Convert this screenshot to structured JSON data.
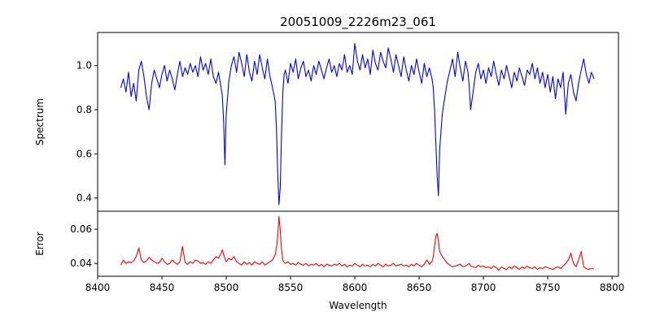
{
  "chart_data": [
    {
      "type": "line",
      "title": "20051009_2226m23_061",
      "xlabel": "",
      "ylabel": "Spectrum",
      "xlim": [
        8400,
        8805
      ],
      "ylim": [
        0.34,
        1.15
      ],
      "yticks": [
        0.4,
        0.6,
        0.8,
        1.0
      ],
      "ytick_labels": [
        "0.4",
        "0.6",
        "0.8",
        "1.0"
      ],
      "grid": false,
      "series": [
        {
          "color": "#0000ff",
          "x": [
            8418,
            8420,
            8422,
            8424,
            8426,
            8428,
            8430,
            8432,
            8434,
            8436,
            8438,
            8440,
            8442,
            8444,
            8446,
            8448,
            8450,
            8452,
            8454,
            8456,
            8458,
            8460,
            8462,
            8464,
            8466,
            8468,
            8470,
            8472,
            8474,
            8476,
            8478,
            8480,
            8482,
            8484,
            8486,
            8488,
            8490,
            8492,
            8494,
            8496,
            8497,
            8498,
            8499,
            8500,
            8502,
            8504,
            8506,
            8508,
            8510,
            8512,
            8514,
            8516,
            8518,
            8520,
            8522,
            8524,
            8526,
            8528,
            8530,
            8532,
            8534,
            8536,
            8538,
            8539,
            8540,
            8541,
            8542,
            8543,
            8544,
            8545,
            8546,
            8548,
            8550,
            8552,
            8554,
            8556,
            8558,
            8560,
            8562,
            8564,
            8566,
            8568,
            8570,
            8572,
            8574,
            8576,
            8578,
            8580,
            8582,
            8584,
            8586,
            8588,
            8590,
            8592,
            8594,
            8596,
            8598,
            8600,
            8602,
            8604,
            8606,
            8608,
            8610,
            8612,
            8614,
            8616,
            8618,
            8620,
            8622,
            8624,
            8626,
            8628,
            8630,
            8632,
            8634,
            8636,
            8638,
            8640,
            8642,
            8644,
            8646,
            8648,
            8650,
            8652,
            8654,
            8656,
            8658,
            8660,
            8661,
            8662,
            8663,
            8664,
            8665,
            8666,
            8668,
            8670,
            8672,
            8674,
            8676,
            8678,
            8680,
            8682,
            8684,
            8686,
            8688,
            8689,
            8690,
            8692,
            8694,
            8696,
            8698,
            8700,
            8702,
            8704,
            8706,
            8708,
            8710,
            8712,
            8714,
            8716,
            8718,
            8720,
            8722,
            8724,
            8726,
            8728,
            8730,
            8732,
            8734,
            8736,
            8738,
            8740,
            8742,
            8744,
            8746,
            8748,
            8750,
            8752,
            8754,
            8756,
            8758,
            8760,
            8762,
            8764,
            8766,
            8768,
            8770,
            8772,
            8774,
            8776,
            8778,
            8780,
            8782,
            8784,
            8786
          ],
          "y": [
            0.9,
            0.94,
            0.88,
            0.97,
            0.86,
            0.92,
            0.84,
            0.98,
            1.02,
            0.95,
            0.86,
            0.8,
            0.92,
            0.98,
            0.94,
            0.9,
            0.96,
            1.0,
            0.93,
            0.98,
            0.94,
            0.89,
            0.96,
            1.02,
            0.95,
            0.99,
            0.96,
            1.01,
            0.97,
            1.0,
            0.95,
            1.04,
            0.98,
            1.01,
            0.96,
            1.03,
            0.95,
            0.92,
            0.97,
            0.9,
            0.86,
            0.74,
            0.55,
            0.78,
            0.93,
            1.0,
            1.04,
            0.97,
            1.06,
            1.01,
            0.95,
            1.05,
            0.97,
            0.93,
            1.02,
            0.96,
            1.05,
            0.99,
            0.94,
            1.03,
            0.95,
            0.9,
            0.84,
            0.72,
            0.52,
            0.37,
            0.45,
            0.7,
            0.88,
            0.96,
            0.98,
            0.92,
            1.01,
            0.97,
            1.03,
            0.94,
            0.99,
            1.02,
            0.95,
            0.98,
            0.93,
            1.0,
            0.96,
            1.02,
            0.98,
            0.94,
            0.99,
            1.03,
            0.97,
            1.0,
            0.95,
            1.01,
            0.98,
            1.05,
            0.97,
            1.0,
            0.96,
            1.1,
            1.02,
            0.98,
            1.05,
            0.99,
            1.03,
            0.96,
            1.07,
            1.01,
            0.98,
            1.06,
            1.02,
            0.99,
            1.08,
            1.03,
            0.97,
            1.05,
            1.0,
            0.95,
            1.04,
            0.98,
            0.93,
            1.0,
            0.96,
            1.03,
            0.97,
            0.92,
            1.01,
            0.95,
            0.99,
            0.94,
            0.9,
            0.8,
            0.65,
            0.5,
            0.41,
            0.62,
            0.78,
            0.86,
            0.93,
            0.98,
            1.03,
            0.95,
            1.06,
            0.99,
            0.93,
            1.02,
            0.97,
            0.9,
            0.8,
            0.88,
            0.97,
            1.01,
            0.94,
            0.98,
            0.92,
            0.99,
            0.95,
            1.02,
            0.96,
            0.91,
            0.98,
            0.94,
            1.0,
            0.95,
            0.9,
            0.97,
            0.93,
            0.99,
            0.95,
            0.91,
            0.98,
            0.96,
            1.01,
            0.94,
            0.99,
            0.92,
            0.97,
            0.9,
            0.96,
            0.88,
            0.95,
            0.85,
            0.94,
            0.9,
            0.97,
            0.78,
            0.92,
            0.96,
            0.88,
            0.84,
            0.92,
            0.98,
            1.03,
            0.96,
            0.92,
            0.97,
            0.94
          ],
          "linewidth": 1.1
        }
      ]
    },
    {
      "type": "line",
      "title": "",
      "xlabel": "Wavelength",
      "ylabel": "Error",
      "xlim": [
        8400,
        8805
      ],
      "ylim": [
        0.0325,
        0.0705
      ],
      "xticks": [
        8400,
        8450,
        8500,
        8550,
        8600,
        8650,
        8700,
        8750,
        8800
      ],
      "xtick_labels": [
        "8400",
        "8450",
        "8500",
        "8550",
        "8600",
        "8650",
        "8700",
        "8750",
        "8800"
      ],
      "yticks": [
        0.04,
        0.06
      ],
      "ytick_labels": [
        "0.04",
        "0.06"
      ],
      "grid": false,
      "series": [
        {
          "color": "#ff0000",
          "x": [
            8418,
            8420,
            8422,
            8424,
            8426,
            8428,
            8430,
            8432,
            8434,
            8436,
            8438,
            8440,
            8442,
            8444,
            8446,
            8448,
            8450,
            8452,
            8454,
            8456,
            8458,
            8460,
            8462,
            8464,
            8466,
            8468,
            8470,
            8472,
            8474,
            8476,
            8478,
            8480,
            8482,
            8484,
            8486,
            8488,
            8490,
            8492,
            8494,
            8496,
            8497,
            8498,
            8499,
            8500,
            8502,
            8504,
            8506,
            8508,
            8510,
            8512,
            8514,
            8516,
            8518,
            8520,
            8522,
            8524,
            8526,
            8528,
            8530,
            8532,
            8534,
            8536,
            8538,
            8539,
            8540,
            8541,
            8542,
            8543,
            8544,
            8545,
            8546,
            8548,
            8550,
            8552,
            8554,
            8556,
            8558,
            8560,
            8562,
            8564,
            8566,
            8568,
            8570,
            8572,
            8574,
            8576,
            8578,
            8580,
            8582,
            8584,
            8586,
            8588,
            8590,
            8592,
            8594,
            8596,
            8598,
            8600,
            8602,
            8604,
            8606,
            8608,
            8610,
            8612,
            8614,
            8616,
            8618,
            8620,
            8622,
            8624,
            8626,
            8628,
            8630,
            8632,
            8634,
            8636,
            8638,
            8640,
            8642,
            8644,
            8646,
            8648,
            8650,
            8652,
            8654,
            8656,
            8658,
            8660,
            8661,
            8662,
            8663,
            8664,
            8665,
            8666,
            8668,
            8670,
            8672,
            8674,
            8676,
            8678,
            8680,
            8682,
            8684,
            8686,
            8688,
            8689,
            8690,
            8692,
            8694,
            8696,
            8698,
            8700,
            8702,
            8704,
            8706,
            8708,
            8710,
            8712,
            8714,
            8716,
            8718,
            8720,
            8722,
            8724,
            8726,
            8728,
            8730,
            8732,
            8734,
            8736,
            8738,
            8740,
            8742,
            8744,
            8746,
            8748,
            8750,
            8752,
            8754,
            8756,
            8758,
            8760,
            8762,
            8764,
            8766,
            8768,
            8770,
            8772,
            8774,
            8776,
            8778,
            8780,
            8782,
            8784,
            8786
          ],
          "y": [
            0.039,
            0.042,
            0.04,
            0.041,
            0.0405,
            0.0415,
            0.044,
            0.049,
            0.042,
            0.0405,
            0.0415,
            0.0435,
            0.042,
            0.041,
            0.04,
            0.0405,
            0.043,
            0.041,
            0.0395,
            0.04,
            0.042,
            0.0405,
            0.0395,
            0.041,
            0.05,
            0.0405,
            0.0395,
            0.041,
            0.04,
            0.042,
            0.0415,
            0.04,
            0.0405,
            0.0395,
            0.041,
            0.04,
            0.042,
            0.044,
            0.043,
            0.046,
            0.048,
            0.045,
            0.043,
            0.041,
            0.043,
            0.042,
            0.044,
            0.041,
            0.04,
            0.039,
            0.041,
            0.0395,
            0.0405,
            0.039,
            0.041,
            0.04,
            0.0395,
            0.041,
            0.039,
            0.04,
            0.041,
            0.042,
            0.045,
            0.049,
            0.055,
            0.0675,
            0.059,
            0.048,
            0.042,
            0.0405,
            0.04,
            0.041,
            0.0395,
            0.04,
            0.039,
            0.0405,
            0.0395,
            0.039,
            0.04,
            0.0385,
            0.0395,
            0.039,
            0.04,
            0.0385,
            0.0395,
            0.038,
            0.0395,
            0.039,
            0.0385,
            0.0395,
            0.039,
            0.04,
            0.0385,
            0.0395,
            0.038,
            0.039,
            0.0385,
            0.04,
            0.039,
            0.038,
            0.0395,
            0.0385,
            0.039,
            0.038,
            0.0395,
            0.0385,
            0.04,
            0.039,
            0.038,
            0.0395,
            0.0385,
            0.039,
            0.04,
            0.0385,
            0.039,
            0.0395,
            0.0385,
            0.039,
            0.038,
            0.0395,
            0.0385,
            0.04,
            0.039,
            0.038,
            0.0395,
            0.042,
            0.0395,
            0.041,
            0.044,
            0.05,
            0.056,
            0.0575,
            0.053,
            0.047,
            0.044,
            0.042,
            0.04,
            0.039,
            0.038,
            0.0385,
            0.039,
            0.0395,
            0.038,
            0.0385,
            0.0395,
            0.04,
            0.0385,
            0.038,
            0.0375,
            0.039,
            0.038,
            0.0385,
            0.0375,
            0.038,
            0.037,
            0.0385,
            0.0375,
            0.036,
            0.038,
            0.037,
            0.0365,
            0.038,
            0.037,
            0.0385,
            0.0375,
            0.0365,
            0.038,
            0.037,
            0.0385,
            0.0375,
            0.037,
            0.038,
            0.0365,
            0.0375,
            0.037,
            0.038,
            0.0375,
            0.037,
            0.0365,
            0.0375,
            0.038,
            0.037,
            0.0385,
            0.04,
            0.042,
            0.046,
            0.04,
            0.038,
            0.042,
            0.047,
            0.038,
            0.037,
            0.0365,
            0.037,
            0.0368
          ],
          "linewidth": 1.1
        }
      ]
    }
  ]
}
